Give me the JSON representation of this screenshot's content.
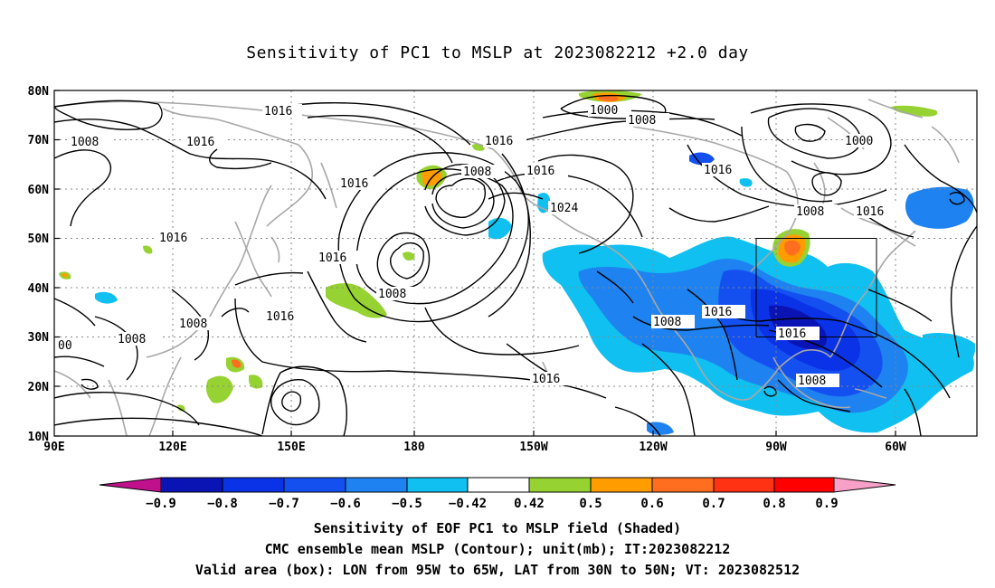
{
  "title": "Sensitivity of PC1 to MSLP at 2023082212 +2.0 day",
  "map": {
    "lat_labels": [
      "80N",
      "70N",
      "60N",
      "50N",
      "40N",
      "30N",
      "20N",
      "10N"
    ],
    "lon_labels": [
      "90E",
      "120E",
      "150E",
      "180",
      "150W",
      "120W",
      "90W",
      "60W"
    ],
    "contour_labels": [
      "1016",
      "1008",
      "1016",
      "1016",
      "1016",
      "1016",
      "1008",
      "1016",
      "1016",
      "1016",
      "1008",
      "1016",
      "1024",
      "1000",
      "1008",
      "1000",
      "1016",
      "1008",
      "1016",
      "1008",
      "1008",
      "1016",
      "1016",
      "1016",
      "1008",
      "1008",
      "00"
    ],
    "valid_box": {
      "lon_min": -95,
      "lon_max": -65,
      "lat_min": 30,
      "lat_max": 50
    },
    "colors": {
      "contour": "#000000",
      "coastline": "#a8a8a8",
      "grid": "#888888",
      "box": "#000000"
    }
  },
  "colorbar": {
    "labels": [
      "−0.9",
      "−0.8",
      "−0.7",
      "−0.6",
      "−0.5",
      "−0.42",
      "0.42",
      "0.5",
      "0.6",
      "0.7",
      "0.8",
      "0.9"
    ],
    "colors": [
      "#c0108c",
      "#0a14b4",
      "#0a32e6",
      "#1450f0",
      "#1e82f0",
      "#10c0f0",
      "#ffffff",
      "#96d232",
      "#ff9c00",
      "#ff6e1e",
      "#ff3214",
      "#ff0000",
      "#f7a0c8"
    ]
  },
  "captions": [
    "Sensitivity of EOF PC1 to MSLP field (Shaded)",
    "CMC ensemble mean MSLP (Contour); unit(mb); IT:2023082212",
    "Valid area (box): LON from 95W to 65W, LAT from 30N to 50N; VT: 2023082512"
  ]
}
